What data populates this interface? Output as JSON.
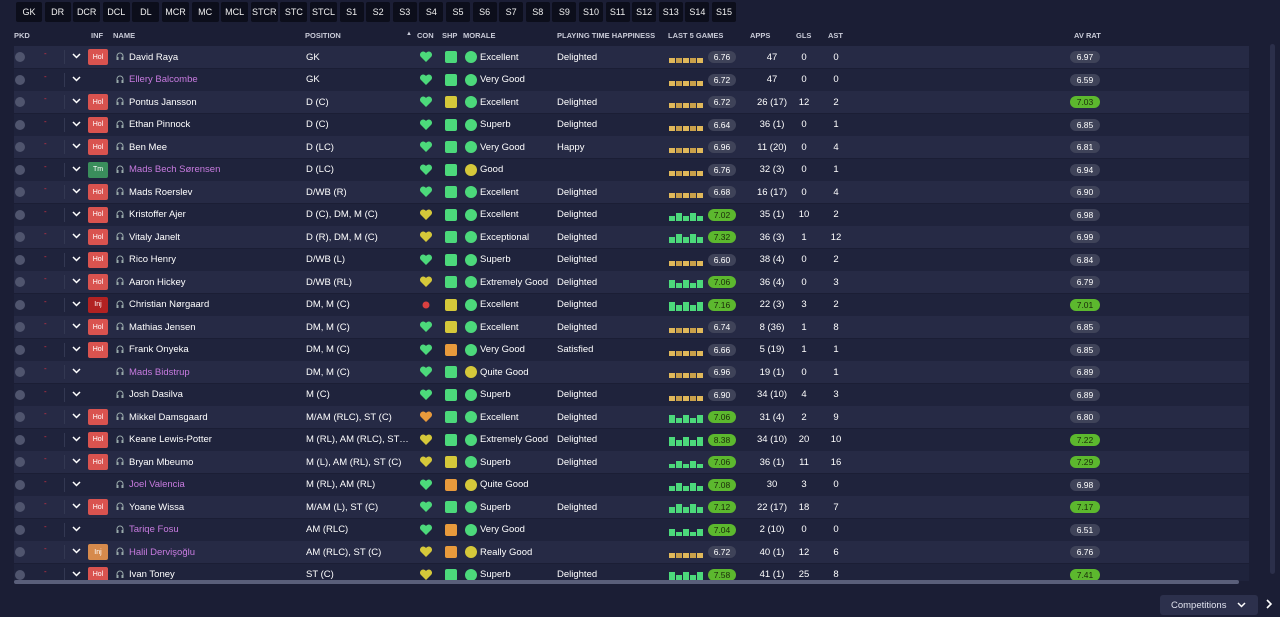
{
  "tabs": [
    "GK",
    "DR",
    "DCR",
    "DCL",
    "DL",
    "MCR",
    "MC",
    "MCL",
    "STCR",
    "STC",
    "STCL",
    "S1",
    "S2",
    "S3",
    "S4",
    "S5",
    "S6",
    "S7",
    "S8",
    "S9",
    "S10",
    "S11",
    "S12",
    "S13",
    "S14",
    "S15"
  ],
  "header": {
    "pkd": "PKD",
    "inf": "INF",
    "name": "NAME",
    "position": "POSITION",
    "sort_icon": "▲",
    "con": "CON",
    "shp": "SHP",
    "morale": "MORALE",
    "happiness": "PLAYING TIME HAPPINESS",
    "last5": "LAST 5 GAMES",
    "apps": "APPS",
    "gls": "GLS",
    "ast": "AST",
    "avrat": "AV RAT"
  },
  "colors": {
    "green": "#4cd97b",
    "yellow": "#d5c83a",
    "orange": "#e89a3c",
    "red": "#d94040",
    "loan_name": "#c87be0"
  },
  "players": [
    {
      "inf": "Hol",
      "inf_type": "hol",
      "name": "David Raya",
      "loan": false,
      "position": "GK",
      "con": "green",
      "shp": "green",
      "morale_color": "green",
      "morale": "Excellent",
      "happiness": "Delighted",
      "l5": "6.76",
      "l5_hi": false,
      "apps": "47",
      "gls": "0",
      "ast": "0",
      "avrat": "6.97",
      "av_hi": false
    },
    {
      "inf": "",
      "inf_type": "",
      "name": "Ellery Balcombe",
      "loan": true,
      "position": "GK",
      "con": "green",
      "shp": "green",
      "morale_color": "green",
      "morale": "Very Good",
      "happiness": "",
      "l5": "6.72",
      "l5_hi": false,
      "apps": "47",
      "gls": "0",
      "ast": "0",
      "avrat": "6.59",
      "av_hi": false
    },
    {
      "inf": "Hol",
      "inf_type": "hol",
      "name": "Pontus Jansson",
      "loan": false,
      "position": "D (C)",
      "con": "green",
      "shp": "yellow",
      "morale_color": "green",
      "morale": "Excellent",
      "happiness": "Delighted",
      "l5": "6.72",
      "l5_hi": false,
      "apps": "26 (17)",
      "gls": "12",
      "ast": "2",
      "avrat": "7.03",
      "av_hi": true
    },
    {
      "inf": "Hol",
      "inf_type": "hol",
      "name": "Ethan Pinnock",
      "loan": false,
      "position": "D (C)",
      "con": "green",
      "shp": "green",
      "morale_color": "green",
      "morale": "Superb",
      "happiness": "Delighted",
      "l5": "6.64",
      "l5_hi": false,
      "apps": "36 (1)",
      "gls": "0",
      "ast": "1",
      "avrat": "6.85",
      "av_hi": false
    },
    {
      "inf": "Hol",
      "inf_type": "hol",
      "name": "Ben Mee",
      "loan": false,
      "position": "D (LC)",
      "con": "green",
      "shp": "green",
      "morale_color": "green",
      "morale": "Very Good",
      "happiness": "Happy",
      "l5": "6.96",
      "l5_hi": false,
      "apps": "11 (20)",
      "gls": "0",
      "ast": "4",
      "avrat": "6.81",
      "av_hi": false
    },
    {
      "inf": "Tm",
      "inf_type": "tm",
      "name": "Mads Bech Sørensen",
      "loan": true,
      "position": "D (LC)",
      "con": "green",
      "shp": "green",
      "morale_color": "yellow",
      "morale": "Good",
      "happiness": "",
      "l5": "6.76",
      "l5_hi": false,
      "apps": "32 (3)",
      "gls": "0",
      "ast": "1",
      "avrat": "6.94",
      "av_hi": false
    },
    {
      "inf": "Hol",
      "inf_type": "hol",
      "name": "Mads Roerslev",
      "loan": false,
      "position": "D/WB (R)",
      "con": "green",
      "shp": "green",
      "morale_color": "green",
      "morale": "Excellent",
      "happiness": "Delighted",
      "l5": "6.68",
      "l5_hi": false,
      "apps": "16 (17)",
      "gls": "0",
      "ast": "4",
      "avrat": "6.90",
      "av_hi": false
    },
    {
      "inf": "Hol",
      "inf_type": "hol",
      "name": "Kristoffer Ajer",
      "loan": false,
      "position": "D (C), DM, M (C)",
      "con": "yellow",
      "shp": "green",
      "morale_color": "green",
      "morale": "Excellent",
      "happiness": "Delighted",
      "l5": "7.02",
      "l5_hi": true,
      "apps": "35 (1)",
      "gls": "10",
      "ast": "2",
      "avrat": "6.98",
      "av_hi": false
    },
    {
      "inf": "Hol",
      "inf_type": "hol",
      "name": "Vitaly Janelt",
      "loan": false,
      "position": "D (R), DM, M (C)",
      "con": "yellow",
      "shp": "green",
      "morale_color": "green",
      "morale": "Exceptional",
      "happiness": "Delighted",
      "l5": "7.32",
      "l5_hi": true,
      "apps": "36 (3)",
      "gls": "1",
      "ast": "12",
      "avrat": "6.99",
      "av_hi": false
    },
    {
      "inf": "Hol",
      "inf_type": "hol",
      "name": "Rico Henry",
      "loan": false,
      "position": "D/WB (L)",
      "con": "green",
      "shp": "green",
      "morale_color": "green",
      "morale": "Superb",
      "happiness": "Delighted",
      "l5": "6.60",
      "l5_hi": false,
      "apps": "38 (4)",
      "gls": "0",
      "ast": "2",
      "avrat": "6.84",
      "av_hi": false
    },
    {
      "inf": "Hol",
      "inf_type": "hol",
      "name": "Aaron Hickey",
      "loan": false,
      "position": "D/WB (RL)",
      "con": "yellow",
      "shp": "green",
      "morale_color": "green",
      "morale": "Extremely Good",
      "happiness": "Delighted",
      "l5": "7.06",
      "l5_hi": true,
      "apps": "36 (4)",
      "gls": "0",
      "ast": "3",
      "avrat": "6.79",
      "av_hi": false
    },
    {
      "inf": "Inj",
      "inf_type": "inj",
      "name": "Christian Nørgaard",
      "loan": false,
      "position": "DM, M (C)",
      "con": "red",
      "shp": "yellow",
      "morale_color": "green",
      "morale": "Excellent",
      "happiness": "Delighted",
      "l5": "7.16",
      "l5_hi": true,
      "apps": "22 (3)",
      "gls": "3",
      "ast": "2",
      "avrat": "7.01",
      "av_hi": true
    },
    {
      "inf": "Hol",
      "inf_type": "hol",
      "name": "Mathias Jensen",
      "loan": false,
      "position": "DM, M (C)",
      "con": "green",
      "shp": "yellow",
      "morale_color": "green",
      "morale": "Excellent",
      "happiness": "Delighted",
      "l5": "6.74",
      "l5_hi": false,
      "apps": "8 (36)",
      "gls": "1",
      "ast": "8",
      "avrat": "6.85",
      "av_hi": false
    },
    {
      "inf": "Hol",
      "inf_type": "hol",
      "name": "Frank Onyeka",
      "loan": false,
      "position": "DM, M (C)",
      "con": "green",
      "shp": "orange",
      "morale_color": "green",
      "morale": "Very Good",
      "happiness": "Satisfied",
      "l5": "6.66",
      "l5_hi": false,
      "apps": "5 (19)",
      "gls": "1",
      "ast": "1",
      "avrat": "6.85",
      "av_hi": false
    },
    {
      "inf": "",
      "inf_type": "",
      "name": "Mads Bidstrup",
      "loan": true,
      "position": "DM, M (C)",
      "con": "green",
      "shp": "green",
      "morale_color": "yellow",
      "morale": "Quite Good",
      "happiness": "",
      "l5": "6.96",
      "l5_hi": false,
      "apps": "19 (1)",
      "gls": "0",
      "ast": "1",
      "avrat": "6.89",
      "av_hi": false
    },
    {
      "inf": "",
      "inf_type": "",
      "name": "Josh Dasilva",
      "loan": false,
      "position": "M (C)",
      "con": "green",
      "shp": "green",
      "morale_color": "green",
      "morale": "Superb",
      "happiness": "Delighted",
      "l5": "6.90",
      "l5_hi": false,
      "apps": "34 (10)",
      "gls": "4",
      "ast": "3",
      "avrat": "6.89",
      "av_hi": false
    },
    {
      "inf": "Hol",
      "inf_type": "hol",
      "name": "Mikkel Damsgaard",
      "loan": false,
      "position": "M/AM (RLC), ST (C)",
      "con": "orange",
      "shp": "green",
      "morale_color": "green",
      "morale": "Excellent",
      "happiness": "Delighted",
      "l5": "7.06",
      "l5_hi": true,
      "apps": "31 (4)",
      "gls": "2",
      "ast": "9",
      "avrat": "6.80",
      "av_hi": false
    },
    {
      "inf": "Hol",
      "inf_type": "hol",
      "name": "Keane Lewis-Potter",
      "loan": false,
      "position": "M (RL), AM (RLC), ST (...",
      "con": "yellow",
      "shp": "green",
      "morale_color": "green",
      "morale": "Extremely Good",
      "happiness": "Delighted",
      "l5": "8.38",
      "l5_hi": true,
      "apps": "34 (10)",
      "gls": "20",
      "ast": "10",
      "avrat": "7.22",
      "av_hi": true
    },
    {
      "inf": "Hol",
      "inf_type": "hol",
      "name": "Bryan Mbeumo",
      "loan": false,
      "position": "M (L), AM (RL), ST (C)",
      "con": "yellow",
      "shp": "yellow",
      "morale_color": "green",
      "morale": "Superb",
      "happiness": "Delighted",
      "l5": "7.06",
      "l5_hi": true,
      "apps": "36 (1)",
      "gls": "11",
      "ast": "16",
      "avrat": "7.29",
      "av_hi": true
    },
    {
      "inf": "",
      "inf_type": "",
      "name": "Joel Valencia",
      "loan": true,
      "position": "M (RL), AM (RL)",
      "con": "green",
      "shp": "orange",
      "morale_color": "yellow",
      "morale": "Quite Good",
      "happiness": "",
      "l5": "7.08",
      "l5_hi": true,
      "apps": "30",
      "gls": "3",
      "ast": "0",
      "avrat": "6.98",
      "av_hi": false
    },
    {
      "inf": "Hol",
      "inf_type": "hol",
      "name": "Yoane Wissa",
      "loan": false,
      "position": "M/AM (L), ST (C)",
      "con": "green",
      "shp": "green",
      "morale_color": "green",
      "morale": "Superb",
      "happiness": "Delighted",
      "l5": "7.12",
      "l5_hi": true,
      "apps": "22 (17)",
      "gls": "18",
      "ast": "7",
      "avrat": "7.17",
      "av_hi": true
    },
    {
      "inf": "",
      "inf_type": "",
      "name": "Tariqe Fosu",
      "loan": true,
      "position": "AM (RLC)",
      "con": "green",
      "shp": "orange",
      "morale_color": "green",
      "morale": "Very Good",
      "happiness": "",
      "l5": "7.04",
      "l5_hi": true,
      "apps": "2 (10)",
      "gls": "0",
      "ast": "0",
      "avrat": "6.51",
      "av_hi": false
    },
    {
      "inf": "Inj",
      "inf_type": "inj2",
      "name": "Halil Dervişoğlu",
      "loan": true,
      "position": "AM (RLC), ST (C)",
      "con": "yellow",
      "shp": "orange",
      "morale_color": "yellow",
      "morale": "Really Good",
      "happiness": "",
      "l5": "6.72",
      "l5_hi": false,
      "apps": "40 (1)",
      "gls": "12",
      "ast": "6",
      "avrat": "6.76",
      "av_hi": false
    },
    {
      "inf": "Hol",
      "inf_type": "hol",
      "name": "Ivan Toney",
      "loan": false,
      "position": "ST (C)",
      "con": "yellow",
      "shp": "green",
      "morale_color": "green",
      "morale": "Superb",
      "happiness": "Delighted",
      "l5": "7.58",
      "l5_hi": true,
      "apps": "41 (1)",
      "gls": "25",
      "ast": "8",
      "avrat": "7.41",
      "av_hi": true
    }
  ],
  "competitions_label": "Competitions"
}
